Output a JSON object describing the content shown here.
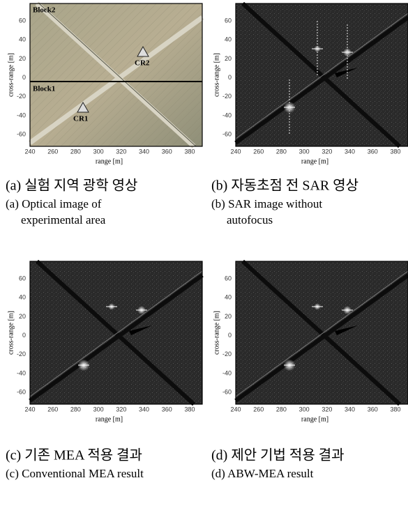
{
  "panels": [
    {
      "x_axis_label": "range [m]",
      "y_axis_label": "cross-range [m]",
      "xticks": [
        "240",
        "260",
        "280",
        "300",
        "320",
        "340",
        "360",
        "380"
      ],
      "yticks": [
        "60",
        "40",
        "20",
        "0",
        "-20",
        "-40",
        "-60"
      ],
      "caption_ko": "(a) 실험 지역 광학 영상",
      "caption_en": [
        "(a) Optical image of",
        "experimental area"
      ],
      "annotations": [
        "Block2",
        "Block1",
        "CR2",
        "CR1"
      ]
    },
    {
      "x_axis_label": "range [m]",
      "y_axis_label": "cross-range [m]",
      "xticks": [
        "240",
        "260",
        "280",
        "300",
        "320",
        "340",
        "360",
        "380"
      ],
      "yticks": [
        "60",
        "40",
        "20",
        "0",
        "-20",
        "-40",
        "-60"
      ],
      "caption_ko": "(b) 자동초점 전 SAR 영상",
      "caption_en": [
        "(b) SAR image without",
        "autofocus"
      ]
    },
    {
      "x_axis_label": "range [m]",
      "y_axis_label": "cross-range [m]",
      "xticks": [
        "240",
        "260",
        "280",
        "300",
        "320",
        "340",
        "360",
        "380"
      ],
      "yticks": [
        "60",
        "40",
        "20",
        "0",
        "-20",
        "-40",
        "-60"
      ],
      "caption_ko": "(c) 기존 MEA 적용 결과",
      "caption_en": [
        "(c) Conventional MEA result"
      ]
    },
    {
      "x_axis_label": "range [m]",
      "y_axis_label": "cross-range [m]",
      "xticks": [
        "240",
        "260",
        "280",
        "300",
        "320",
        "340",
        "360",
        "380"
      ],
      "yticks": [
        "60",
        "40",
        "20",
        "0",
        "-20",
        "-40",
        "-60"
      ],
      "caption_ko": "(d) 제안 기법 적용 결과",
      "caption_en": [
        "(d) ABW-MEA result"
      ]
    }
  ]
}
